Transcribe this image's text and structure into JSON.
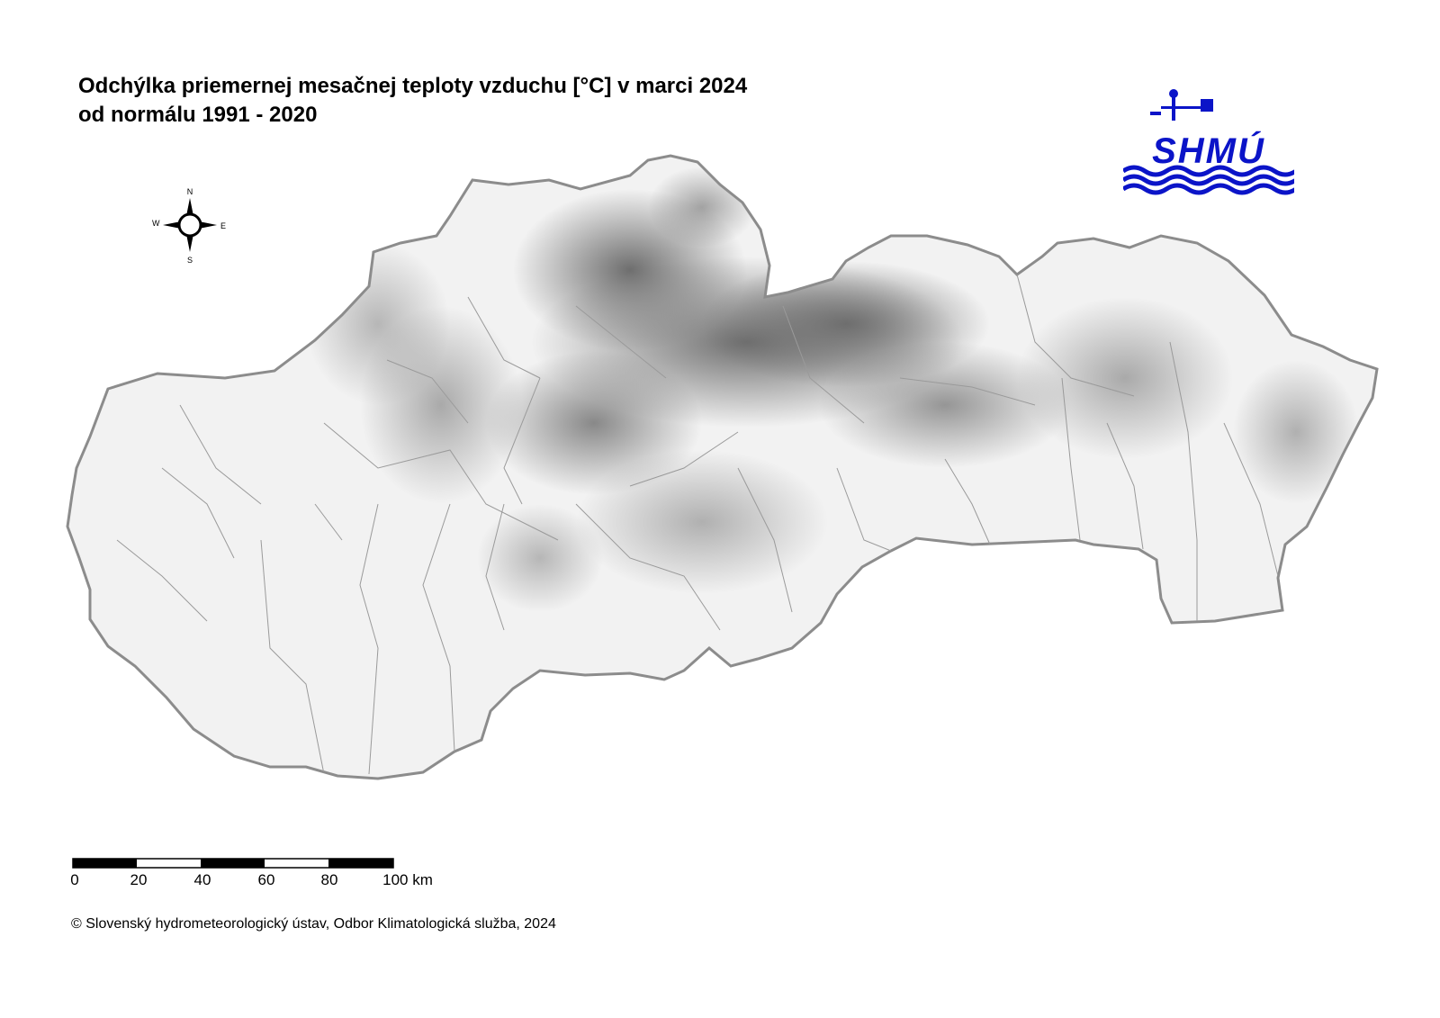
{
  "title": {
    "line1": "Odchýlka priemernej mesačnej teploty vzduchu [°C] v marci 2024",
    "line2": "od normálu 1991 - 2020"
  },
  "logo": {
    "text": "SHMÚ",
    "color": "#0b14c8"
  },
  "compass": {
    "n": "N",
    "s": "S",
    "e": "E",
    "w": "W"
  },
  "scale": {
    "labels": [
      "0",
      "20",
      "40",
      "60",
      "80",
      "100 km"
    ]
  },
  "copyright": "© Slovenský hydrometeorologický ústav, Odbor Klimatologická služba, 2024"
}
